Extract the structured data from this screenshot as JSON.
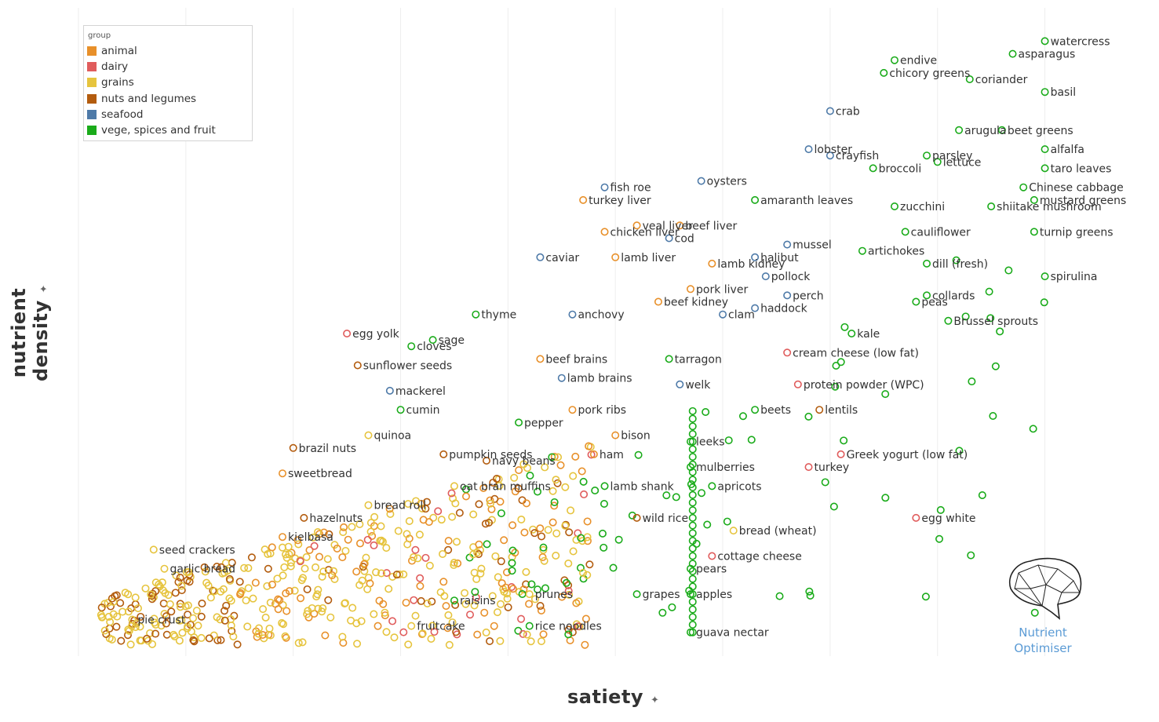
{
  "legend": {
    "title": "group",
    "items": [
      {
        "label": "animal",
        "color": "#e8902a"
      },
      {
        "label": "dairy",
        "color": "#e05c5c"
      },
      {
        "label": "grains",
        "color": "#e6c43e"
      },
      {
        "label": "nuts and legumes",
        "color": "#b35c0e"
      },
      {
        "label": "seafood",
        "color": "#4e7aa8"
      },
      {
        "label": "vege, spices and fruit",
        "color": "#1aab1a"
      }
    ]
  },
  "axes": {
    "x_title": "satiety",
    "y_title": "nutrient density",
    "pin_icon": "pin-icon"
  },
  "logo": {
    "line1": "Nutrient",
    "line2": "Optimiser",
    "icon": "brain-icon"
  },
  "chart_data": {
    "type": "scatter",
    "x": {
      "title": "satiety",
      "range": [
        0,
        9.5
      ]
    },
    "y": {
      "title": "nutrient density",
      "range": [
        0,
        10
      ]
    },
    "grid": "vertical",
    "legend_position": "top-left",
    "labeled_points": [
      {
        "label": "watercress",
        "g": 5,
        "x": 9.0,
        "y": 9.6
      },
      {
        "label": "asparagus",
        "g": 5,
        "x": 8.7,
        "y": 9.4
      },
      {
        "label": "endive",
        "g": 5,
        "x": 7.6,
        "y": 9.3
      },
      {
        "label": "chicory greens",
        "g": 5,
        "x": 7.5,
        "y": 9.1
      },
      {
        "label": "coriander",
        "g": 5,
        "x": 8.3,
        "y": 9.0
      },
      {
        "label": "basil",
        "g": 5,
        "x": 9.0,
        "y": 8.8
      },
      {
        "label": "crab",
        "g": 4,
        "x": 7.0,
        "y": 8.5
      },
      {
        "label": "arugula",
        "g": 5,
        "x": 8.2,
        "y": 8.2
      },
      {
        "label": "beet greens",
        "g": 5,
        "x": 8.6,
        "y": 8.2
      },
      {
        "label": "lobster",
        "g": 4,
        "x": 6.8,
        "y": 7.9
      },
      {
        "label": "parsley",
        "g": 5,
        "x": 7.9,
        "y": 7.8
      },
      {
        "label": "alfalfa",
        "g": 5,
        "x": 9.0,
        "y": 7.9
      },
      {
        "label": "crayfish",
        "g": 4,
        "x": 7.0,
        "y": 7.8
      },
      {
        "label": "broccoli",
        "g": 5,
        "x": 7.4,
        "y": 7.6
      },
      {
        "label": "lettuce",
        "g": 5,
        "x": 8.0,
        "y": 7.7
      },
      {
        "label": "taro leaves",
        "g": 5,
        "x": 9.0,
        "y": 7.6
      },
      {
        "label": "Chinese cabbage",
        "g": 5,
        "x": 8.8,
        "y": 7.3
      },
      {
        "label": "fish roe",
        "g": 4,
        "x": 4.9,
        "y": 7.3
      },
      {
        "label": "oysters",
        "g": 4,
        "x": 5.8,
        "y": 7.4
      },
      {
        "label": "amaranth leaves",
        "g": 5,
        "x": 6.3,
        "y": 7.1
      },
      {
        "label": "shiitake mushroom",
        "g": 5,
        "x": 8.5,
        "y": 7.0
      },
      {
        "label": "turkey liver",
        "g": 0,
        "x": 4.7,
        "y": 7.1
      },
      {
        "label": "zucchini",
        "g": 5,
        "x": 7.6,
        "y": 7.0
      },
      {
        "label": "mustard greens",
        "g": 5,
        "x": 8.9,
        "y": 7.1
      },
      {
        "label": "veal liver",
        "g": 0,
        "x": 5.2,
        "y": 6.7
      },
      {
        "label": "beef liver",
        "g": 0,
        "x": 5.6,
        "y": 6.7
      },
      {
        "label": "chicken liver",
        "g": 0,
        "x": 4.9,
        "y": 6.6
      },
      {
        "label": "mussel",
        "g": 4,
        "x": 6.6,
        "y": 6.4
      },
      {
        "label": "cauliflower",
        "g": 5,
        "x": 7.7,
        "y": 6.6
      },
      {
        "label": "cod",
        "g": 4,
        "x": 5.5,
        "y": 6.5
      },
      {
        "label": "halibut",
        "g": 4,
        "x": 6.3,
        "y": 6.2
      },
      {
        "label": "turnip greens",
        "g": 5,
        "x": 8.9,
        "y": 6.6
      },
      {
        "label": "artichokes",
        "g": 5,
        "x": 7.3,
        "y": 6.3
      },
      {
        "label": "lamb kidney",
        "g": 0,
        "x": 5.9,
        "y": 6.1
      },
      {
        "label": "caviar",
        "g": 4,
        "x": 4.3,
        "y": 6.2
      },
      {
        "label": "lamb liver",
        "g": 0,
        "x": 5.0,
        "y": 6.2
      },
      {
        "label": "dill (fresh)",
        "g": 5,
        "x": 7.9,
        "y": 6.1
      },
      {
        "label": "pollock",
        "g": 4,
        "x": 6.4,
        "y": 5.9
      },
      {
        "label": "pork liver",
        "g": 0,
        "x": 5.7,
        "y": 5.7
      },
      {
        "label": "spirulina",
        "g": 5,
        "x": 9.0,
        "y": 5.9
      },
      {
        "label": "collards",
        "g": 5,
        "x": 7.9,
        "y": 5.6
      },
      {
        "label": "perch",
        "g": 4,
        "x": 6.6,
        "y": 5.6
      },
      {
        "label": "beef kidney",
        "g": 0,
        "x": 5.4,
        "y": 5.5
      },
      {
        "label": "anchovy",
        "g": 4,
        "x": 4.6,
        "y": 5.3
      },
      {
        "label": "clam",
        "g": 4,
        "x": 6.0,
        "y": 5.3
      },
      {
        "label": "haddock",
        "g": 4,
        "x": 6.3,
        "y": 5.4
      },
      {
        "label": "peas",
        "g": 5,
        "x": 7.8,
        "y": 5.5
      },
      {
        "label": "Brussel sprouts",
        "g": 5,
        "x": 8.1,
        "y": 5.2
      },
      {
        "label": "sage",
        "g": 5,
        "x": 3.3,
        "y": 4.9
      },
      {
        "label": "thyme",
        "g": 5,
        "x": 3.7,
        "y": 5.3
      },
      {
        "label": "kale",
        "g": 5,
        "x": 7.2,
        "y": 5.0
      },
      {
        "label": "egg yolk",
        "g": 1,
        "x": 2.5,
        "y": 5.0
      },
      {
        "label": "cloves",
        "g": 5,
        "x": 3.1,
        "y": 4.8
      },
      {
        "label": "beef brains",
        "g": 0,
        "x": 4.3,
        "y": 4.6
      },
      {
        "label": "tarragon",
        "g": 5,
        "x": 5.5,
        "y": 4.6
      },
      {
        "label": "cream cheese (low fat)",
        "g": 1,
        "x": 6.6,
        "y": 4.7
      },
      {
        "label": "sunflower seeds",
        "g": 3,
        "x": 2.6,
        "y": 4.5
      },
      {
        "label": "welk",
        "g": 4,
        "x": 5.6,
        "y": 4.2
      },
      {
        "label": "protein powder (WPC)",
        "g": 1,
        "x": 6.7,
        "y": 4.2
      },
      {
        "label": "mackerel",
        "g": 4,
        "x": 2.9,
        "y": 4.1
      },
      {
        "label": "lamb brains",
        "g": 4,
        "x": 4.5,
        "y": 4.3
      },
      {
        "label": "beets",
        "g": 5,
        "x": 6.3,
        "y": 3.8
      },
      {
        "label": "cumin",
        "g": 5,
        "x": 3.0,
        "y": 3.8
      },
      {
        "label": "pork ribs",
        "g": 0,
        "x": 4.6,
        "y": 3.8
      },
      {
        "label": "lentils",
        "g": 3,
        "x": 6.9,
        "y": 3.8
      },
      {
        "label": "quinoa",
        "g": 2,
        "x": 2.7,
        "y": 3.4
      },
      {
        "label": "pepper",
        "g": 5,
        "x": 4.1,
        "y": 3.6
      },
      {
        "label": "bison",
        "g": 0,
        "x": 5.0,
        "y": 3.4
      },
      {
        "label": "leeks",
        "g": 5,
        "x": 5.7,
        "y": 3.3
      },
      {
        "label": "pumpkin seeds",
        "g": 3,
        "x": 3.4,
        "y": 3.1
      },
      {
        "label": "ham",
        "g": 0,
        "x": 4.8,
        "y": 3.1
      },
      {
        "label": "Greek yogurt (low fat)",
        "g": 1,
        "x": 7.1,
        "y": 3.1
      },
      {
        "label": "brazil nuts",
        "g": 3,
        "x": 2.0,
        "y": 3.2
      },
      {
        "label": "navy beans",
        "g": 3,
        "x": 3.8,
        "y": 3.0
      },
      {
        "label": "turkey",
        "g": 1,
        "x": 6.8,
        "y": 2.9
      },
      {
        "label": "mulberries",
        "g": 5,
        "x": 5.7,
        "y": 2.9
      },
      {
        "label": "oat bran muffins",
        "g": 2,
        "x": 3.5,
        "y": 2.6
      },
      {
        "label": "sweetbread",
        "g": 0,
        "x": 1.9,
        "y": 2.8
      },
      {
        "label": "apricots",
        "g": 5,
        "x": 5.9,
        "y": 2.6
      },
      {
        "label": "lamb shank",
        "g": 5,
        "x": 4.9,
        "y": 2.6
      },
      {
        "label": "bread roll",
        "g": 2,
        "x": 2.7,
        "y": 2.3
      },
      {
        "label": "hazelnuts",
        "g": 3,
        "x": 2.1,
        "y": 2.1
      },
      {
        "label": "bread (wheat)",
        "g": 2,
        "x": 6.1,
        "y": 1.9
      },
      {
        "label": "kielbasa",
        "g": 0,
        "x": 1.9,
        "y": 1.8
      },
      {
        "label": "wild rice",
        "g": 3,
        "x": 5.2,
        "y": 2.1
      },
      {
        "label": "egg white",
        "g": 1,
        "x": 7.8,
        "y": 2.1
      },
      {
        "label": "seed crackers",
        "g": 2,
        "x": 0.7,
        "y": 1.6
      },
      {
        "label": "cottage cheese",
        "g": 1,
        "x": 5.9,
        "y": 1.5
      },
      {
        "label": "garlic bread",
        "g": 2,
        "x": 0.8,
        "y": 1.3
      },
      {
        "label": "pears",
        "g": 5,
        "x": 5.7,
        "y": 1.3
      },
      {
        "label": "raisins",
        "g": 5,
        "x": 3.5,
        "y": 0.8
      },
      {
        "label": "prunes",
        "g": 2,
        "x": 4.2,
        "y": 0.9
      },
      {
        "label": "grapes",
        "g": 5,
        "x": 5.2,
        "y": 0.9
      },
      {
        "label": "apples",
        "g": 5,
        "x": 5.7,
        "y": 0.9
      },
      {
        "label": "pie crust",
        "g": 2,
        "x": 0.5,
        "y": 0.5
      },
      {
        "label": "fruitcake",
        "g": 2,
        "x": 3.1,
        "y": 0.4
      },
      {
        "label": "rice noodles",
        "g": 5,
        "x": 4.2,
        "y": 0.4
      },
      {
        "label": "guava nectar",
        "g": 5,
        "x": 5.7,
        "y": 0.3
      }
    ]
  }
}
